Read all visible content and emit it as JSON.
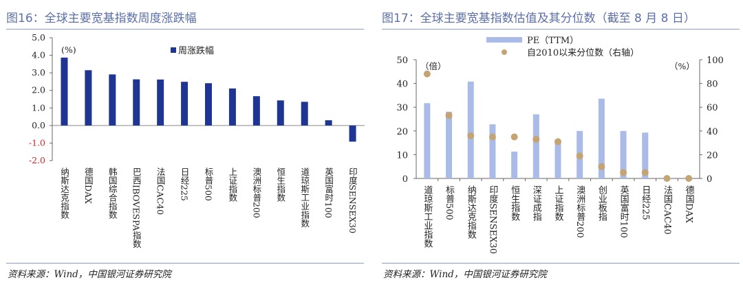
{
  "charts": [
    {
      "title": "图16：全球主要宽基指数周度涨跌幅",
      "source": "资料来源：Wind，中国银河证券研究院",
      "unit_label": "(%)",
      "legend": "周涨跌幅",
      "yticks": [
        "5.0",
        "4.0",
        "3.0",
        "2.0",
        "1.0",
        "0.0",
        "-1.0",
        "-2.0"
      ]
    },
    {
      "title": "图17：全球主要宽基指数估值及其分位数（截至 8 月 8 日）",
      "source": "资料来源：Wind，中国银河证券研究院",
      "left_unit": "（倍）",
      "right_unit": "（%）",
      "legend_bar": "PE（TTM）",
      "legend_dot": "自2010以来分位数（右轴）",
      "yticks_left": [
        "50",
        "40",
        "30",
        "20",
        "10",
        "0"
      ],
      "yticks_right": [
        "100",
        "80",
        "60",
        "40",
        "20",
        "0"
      ]
    }
  ],
  "chart_data": [
    {
      "type": "bar",
      "categories": [
        "纳斯达克指数",
        "德国DAX",
        "韩国综合指数",
        "巴西IBOVESPA指数",
        "法国CAC40",
        "日经225",
        "标普500",
        "上证指数",
        "澳洲标普200",
        "恒生指数",
        "道琼斯工业指数",
        "英国富时100",
        "印度SENSEX30"
      ],
      "series": [
        {
          "name": "周涨跌幅",
          "values": [
            3.87,
            3.15,
            2.91,
            2.63,
            2.62,
            2.49,
            2.41,
            2.11,
            1.67,
            1.43,
            1.35,
            0.3,
            -0.92
          ]
        }
      ],
      "ylabel": "(%)",
      "ylim": [
        -2.0,
        5.0
      ],
      "legend_position": "top",
      "colors": {
        "bar": "#1f3593"
      }
    },
    {
      "type": "bar",
      "categories": [
        "道琼斯工业指数",
        "标普500",
        "纳斯达克指数",
        "印度SENSEX30",
        "恒生指数",
        "深证成指",
        "上证指数",
        "澳洲标普200",
        "创业板指",
        "英国富时100",
        "日经225",
        "法国CAC40",
        "德国DAX"
      ],
      "series": [
        {
          "name": "PE（TTM）",
          "type": "bar",
          "axis": "left",
          "values": [
            31.7,
            28.1,
            40.8,
            22.8,
            11.3,
            27.0,
            15.8,
            20.0,
            33.6,
            20.0,
            19.3,
            0,
            0
          ]
        },
        {
          "name": "自2010以来分位数（右轴）",
          "type": "scatter",
          "axis": "right",
          "values": [
            88,
            53,
            36,
            35,
            35,
            33,
            31,
            19,
            10,
            5,
            5,
            0,
            0
          ]
        }
      ],
      "ylabel_left": "（倍）",
      "ylabel_right": "（%）",
      "ylim_left": [
        0,
        50
      ],
      "ylim_right": [
        0,
        100
      ],
      "legend_position": "top",
      "colors": {
        "bar": "#a9bbe6",
        "dot": "#c4a472"
      }
    }
  ]
}
